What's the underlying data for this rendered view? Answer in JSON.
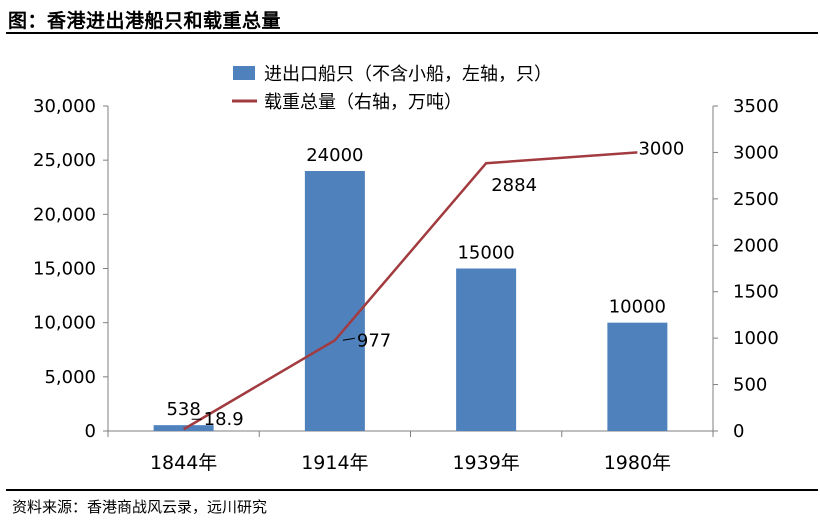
{
  "header": {
    "title": "图：香港进出港船只和载重总量"
  },
  "footer": {
    "source": "资料来源：香港商战风云录，远川研究"
  },
  "colors": {
    "bar": "#4F81BD",
    "line": "#A23B3F",
    "axis": "#7f7f7f"
  },
  "chart_data": {
    "type": "bar+line",
    "categories": [
      "1844年",
      "1914年",
      "1939年",
      "1980年"
    ],
    "series": [
      {
        "name": "进出口船只（不含小船，左轴，只）",
        "type": "bar",
        "axis": "left",
        "values": [
          538,
          24000,
          15000,
          10000
        ],
        "labels": [
          "538",
          "24000",
          "15000",
          "10000"
        ]
      },
      {
        "name": "载重总量（右轴，万吨）",
        "type": "line",
        "axis": "right",
        "values": [
          18.9,
          977,
          2884,
          3000
        ],
        "labels": [
          "18.9",
          "977",
          "2884",
          "3000"
        ]
      }
    ],
    "left_axis": {
      "min": 0,
      "max": 30000,
      "ticks": [
        "0",
        "5,000",
        "10,000",
        "15,000",
        "20,000",
        "25,000",
        "30,000"
      ]
    },
    "right_axis": {
      "min": 0,
      "max": 3500,
      "ticks": [
        "0",
        "500",
        "1000",
        "1500",
        "2000",
        "2500",
        "3000",
        "3500"
      ]
    },
    "legend_position": "top",
    "grid": false
  }
}
